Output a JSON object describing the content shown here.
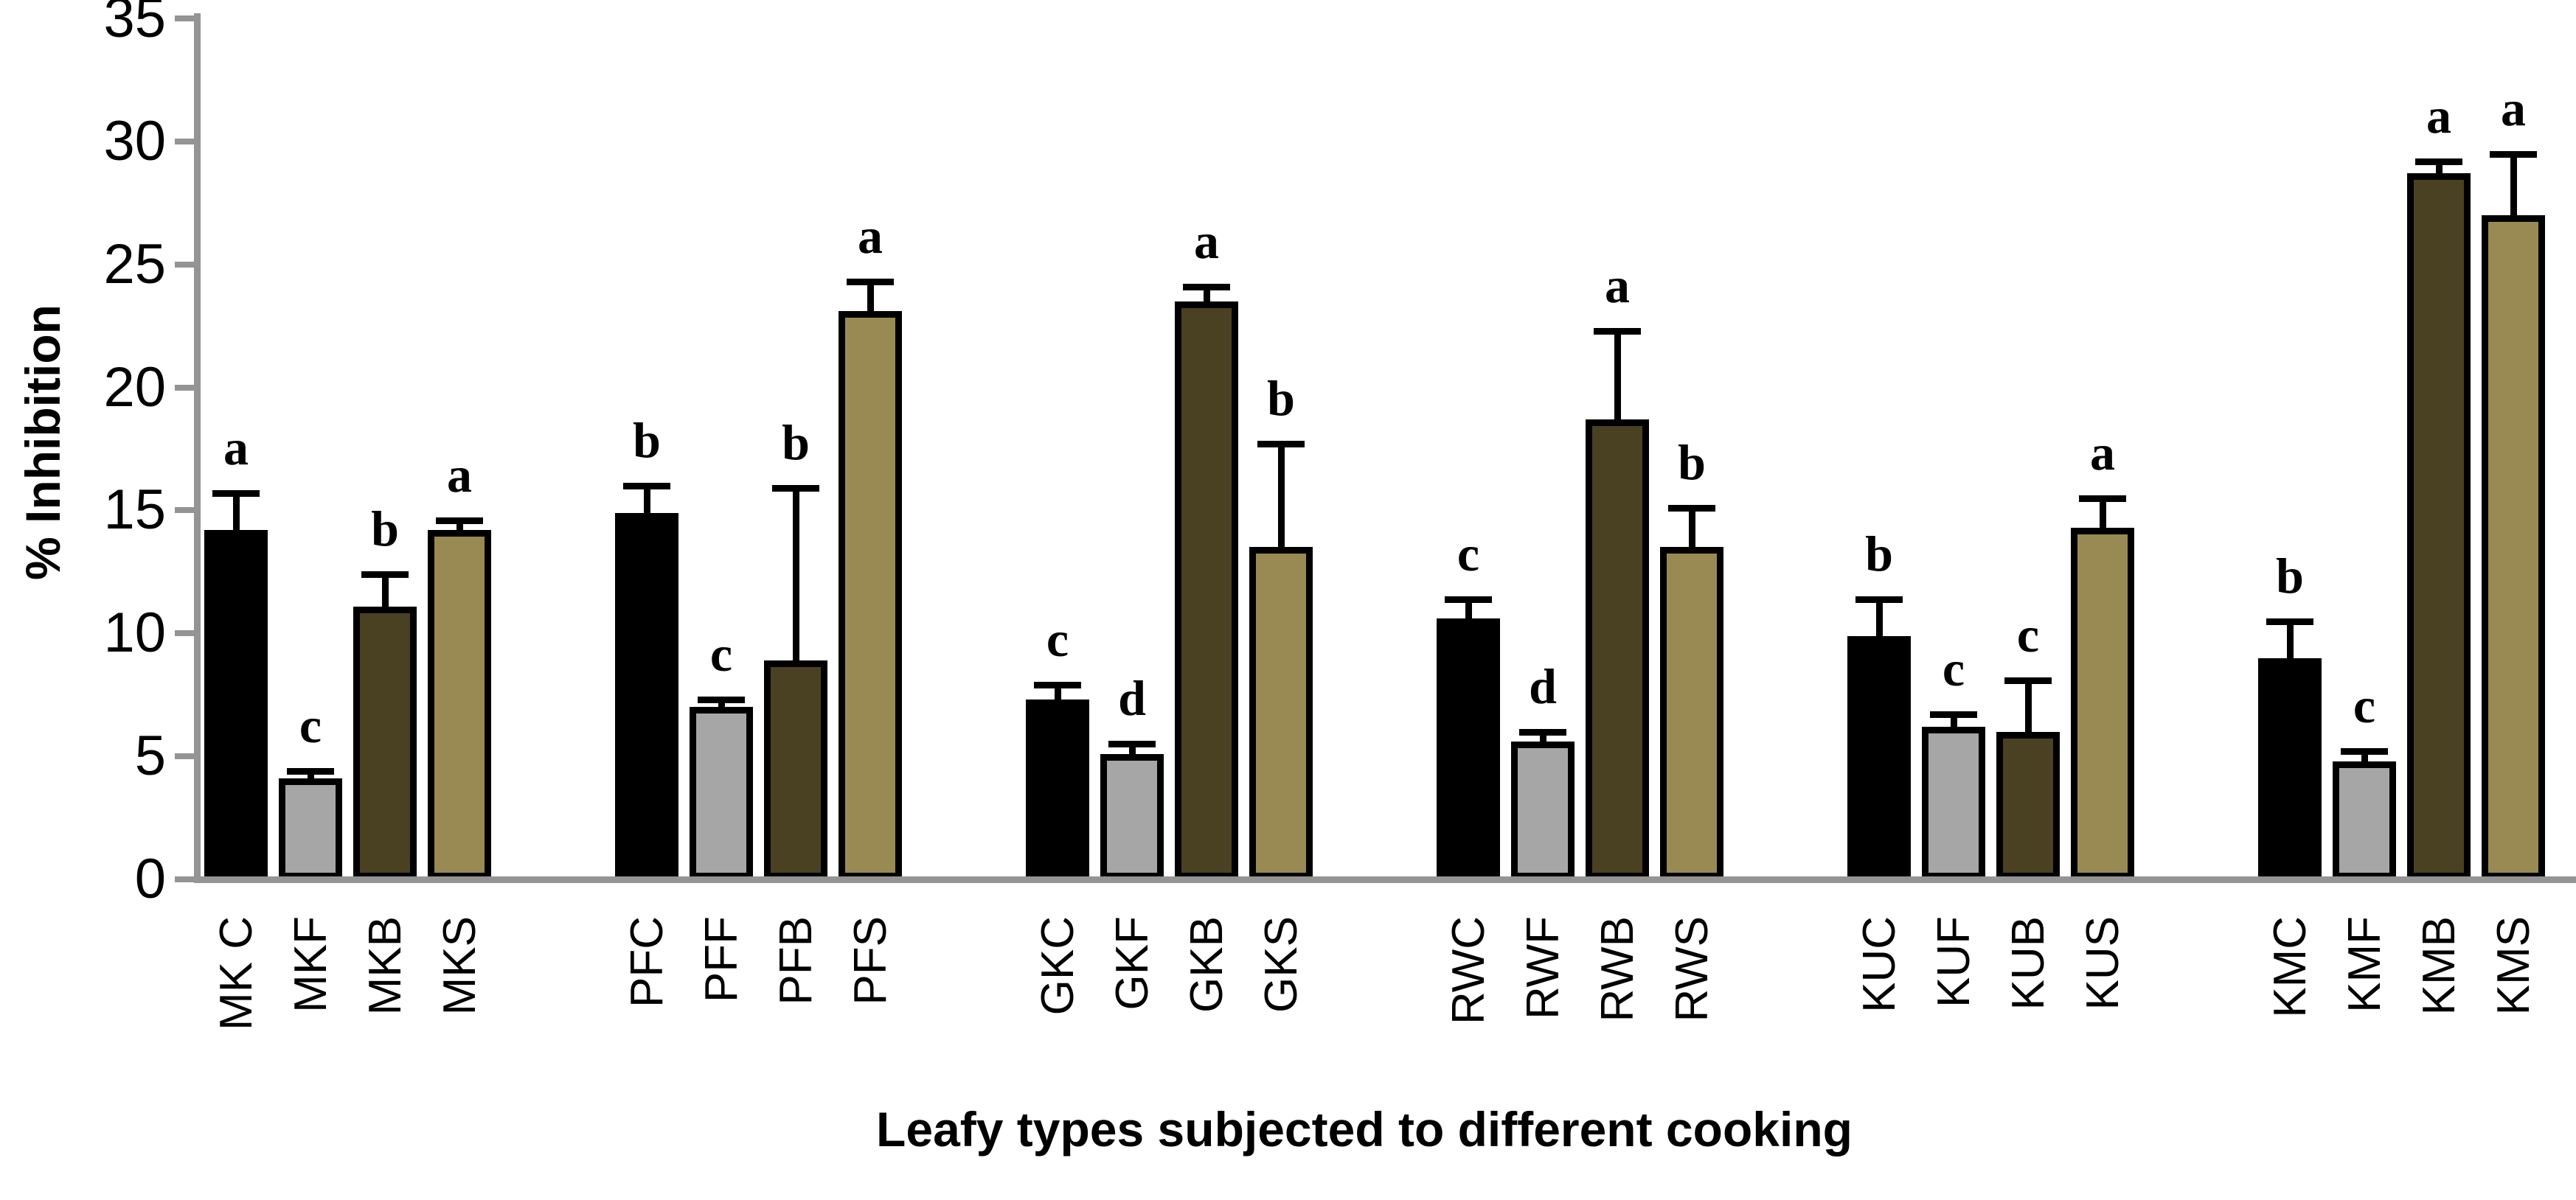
{
  "chart_data": {
    "type": "bar",
    "title": "",
    "xlabel": "Leafy types subjected to different cooking",
    "ylabel": "% Inhibition",
    "ylim": [
      0,
      35
    ],
    "yticks": [
      0,
      5,
      10,
      15,
      20,
      25,
      30,
      35
    ],
    "grid": false,
    "legend_position": "none",
    "error_bars": "upper only, black caps",
    "type_colors": {
      "C": "#000000",
      "F": "#a6a6a6",
      "B": "#4a4123",
      "S": "#988a52"
    },
    "axis_color": "#949494",
    "groups": [
      {
        "group": "MK",
        "bars": [
          {
            "label": "MK C",
            "type": "C",
            "value": 14.2,
            "error": 1.5,
            "letter": "a"
          },
          {
            "label": "MKF",
            "type": "F",
            "value": 4.1,
            "error": 0.3,
            "letter": "c"
          },
          {
            "label": "MKB",
            "type": "B",
            "value": 11.1,
            "error": 1.3,
            "letter": "b"
          },
          {
            "label": "MKS",
            "type": "S",
            "value": 14.2,
            "error": 0.4,
            "letter": "a"
          }
        ]
      },
      {
        "group": "PF",
        "bars": [
          {
            "label": "PFC",
            "type": "C",
            "value": 14.9,
            "error": 1.1,
            "letter": "b"
          },
          {
            "label": "PFF",
            "type": "F",
            "value": 7.0,
            "error": 0.3,
            "letter": "c"
          },
          {
            "label": "PFB",
            "type": "B",
            "value": 8.9,
            "error": 7.0,
            "letter": "b"
          },
          {
            "label": "PFS",
            "type": "S",
            "value": 23.1,
            "error": 1.2,
            "letter": "a"
          }
        ]
      },
      {
        "group": "GK",
        "bars": [
          {
            "label": "GKC",
            "type": "C",
            "value": 7.3,
            "error": 0.6,
            "letter": "c"
          },
          {
            "label": "GKF",
            "type": "F",
            "value": 5.1,
            "error": 0.4,
            "letter": "d"
          },
          {
            "label": "GKB",
            "type": "B",
            "value": 23.5,
            "error": 0.6,
            "letter": "a"
          },
          {
            "label": "GKS",
            "type": "S",
            "value": 13.5,
            "error": 4.2,
            "letter": "b"
          }
        ]
      },
      {
        "group": "RW",
        "bars": [
          {
            "label": "RWC",
            "type": "C",
            "value": 10.6,
            "error": 0.8,
            "letter": "c"
          },
          {
            "label": "RWF",
            "type": "F",
            "value": 5.6,
            "error": 0.4,
            "letter": "d"
          },
          {
            "label": "RWB",
            "type": "B",
            "value": 18.7,
            "error": 3.6,
            "letter": "a"
          },
          {
            "label": "RWS",
            "type": "S",
            "value": 13.5,
            "error": 1.6,
            "letter": "b"
          }
        ]
      },
      {
        "group": "KU",
        "bars": [
          {
            "label": "KUC",
            "type": "C",
            "value": 9.9,
            "error": 1.5,
            "letter": "b"
          },
          {
            "label": "KUF",
            "type": "F",
            "value": 6.2,
            "error": 0.5,
            "letter": "c"
          },
          {
            "label": "KUB",
            "type": "B",
            "value": 6.0,
            "error": 2.1,
            "letter": "c"
          },
          {
            "label": "KUS",
            "type": "S",
            "value": 14.3,
            "error": 1.2,
            "letter": "a"
          }
        ]
      },
      {
        "group": "KM",
        "bars": [
          {
            "label": "KMC",
            "type": "C",
            "value": 9.0,
            "error": 1.5,
            "letter": "b"
          },
          {
            "label": "KMF",
            "type": "F",
            "value": 4.8,
            "error": 0.4,
            "letter": "c"
          },
          {
            "label": "KMB",
            "type": "B",
            "value": 28.7,
            "error": 0.5,
            "letter": "a"
          },
          {
            "label": "KMS",
            "type": "S",
            "value": 27.0,
            "error": 2.5,
            "letter": "a"
          }
        ]
      }
    ]
  }
}
